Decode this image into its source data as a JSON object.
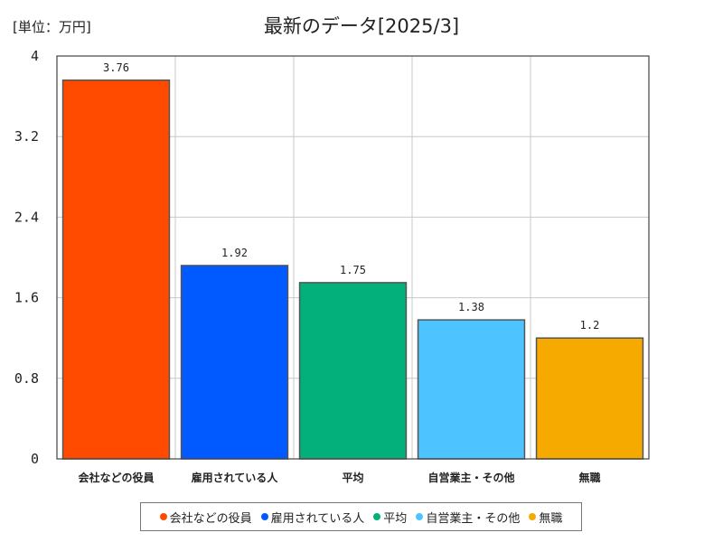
{
  "unit_label": "[単位：万円]",
  "chart_data": {
    "type": "bar",
    "title": "最新のデータ[2025/3]",
    "categories": [
      "会社などの役員",
      "雇用されている人",
      "平均",
      "自営業主・その他",
      "無職"
    ],
    "values": [
      3.76,
      1.92,
      1.75,
      1.38,
      1.2
    ],
    "value_labels": [
      "3.76",
      "1.92",
      "1.75",
      "1.38",
      "1.2"
    ],
    "colors": [
      "#ff4b00",
      "#005aff",
      "#03af7a",
      "#4dc4ff",
      "#f6aa00"
    ],
    "ylim": [
      0,
      4
    ],
    "yticks": [
      0,
      0.8,
      1.6,
      2.4,
      3.2,
      4
    ],
    "ytick_labels": [
      "0",
      "0.8",
      "1.6",
      "2.4",
      "3.2",
      "4"
    ],
    "grid": true,
    "legend_position": "bottom"
  }
}
